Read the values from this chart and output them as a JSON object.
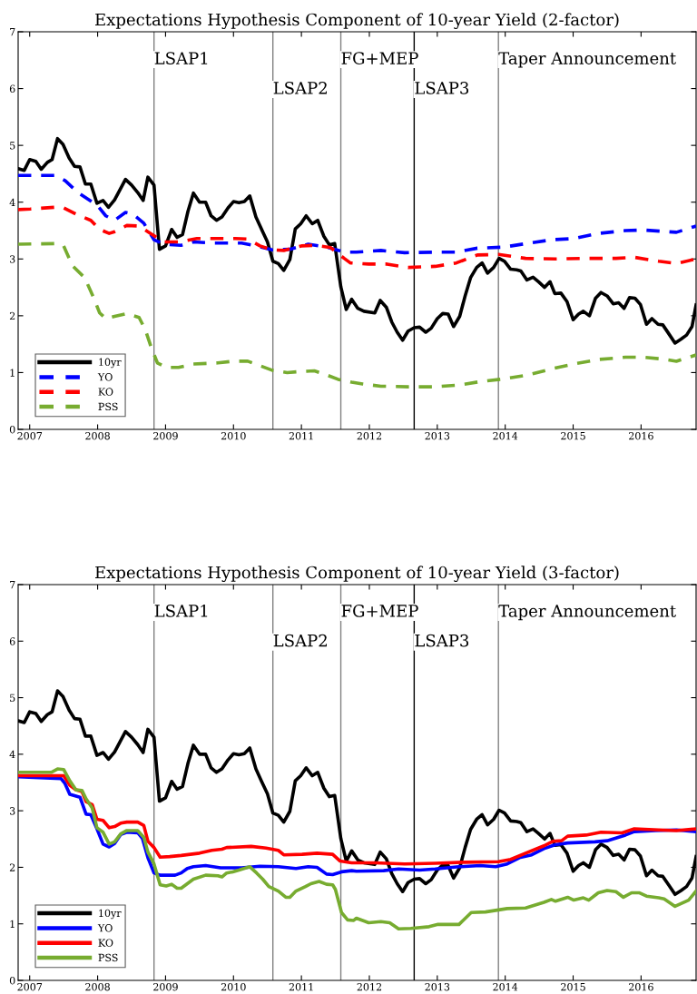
{
  "chart_data": [
    {
      "type": "line",
      "title": "Expectations Hypothesis Component of 10-year Yield (2-factor)",
      "xlim": [
        2006.83,
        2016.81
      ],
      "xticks": [
        2007,
        2008,
        2009,
        2010,
        2011,
        2012,
        2013,
        2014,
        2015,
        2016
      ],
      "ylim": [
        0,
        7
      ],
      "yticks": [
        0,
        1,
        2,
        3,
        4,
        5,
        6,
        7
      ],
      "grid": false,
      "legend": "bottom left",
      "ref_lines": [
        {
          "axis": "x",
          "value": 2008.83,
          "label": "LSAP1",
          "color": "#808080"
        },
        {
          "axis": "x",
          "value": 2010.58,
          "label": "LSAP2",
          "color": "#808080"
        },
        {
          "axis": "x",
          "value": 2011.58,
          "label": "FG+MEP",
          "color": "#808080"
        },
        {
          "axis": "x",
          "value": 2012.66,
          "label": "LSAP3",
          "color": "#000000"
        },
        {
          "axis": "x",
          "value": 2013.9,
          "label": "Taper Announcement",
          "color": "#808080"
        }
      ],
      "series": [
        {
          "name": "10yr",
          "color": "#000000",
          "line_style": "solid",
          "x": [
            2006.83,
            2006.92,
            2007.0,
            2007.09,
            2007.17,
            2007.26,
            2007.33,
            2007.41,
            2007.49,
            2007.58,
            2007.66,
            2007.74,
            2007.82,
            2007.9,
            2007.99,
            2008.08,
            2008.16,
            2008.25,
            2008.33,
            2008.41,
            2008.5,
            2008.59,
            2008.67,
            2008.74,
            2008.83,
            2008.91,
            2009.0,
            2009.09,
            2009.17,
            2009.25,
            2009.33,
            2009.41,
            2009.5,
            2009.59,
            2009.67,
            2009.75,
            2009.83,
            2009.92,
            2010.0,
            2010.08,
            2010.16,
            2010.24,
            2010.33,
            2010.41,
            2010.5,
            2010.58,
            2010.66,
            2010.74,
            2010.83,
            2010.91,
            2010.99,
            2011.07,
            2011.16,
            2011.24,
            2011.33,
            2011.41,
            2011.49,
            2011.58,
            2011.66,
            2011.74,
            2011.83,
            2011.92,
            2012.08,
            2012.16,
            2012.25,
            2012.33,
            2012.41,
            2012.49,
            2012.57,
            2012.66,
            2012.74,
            2012.83,
            2012.91,
            2013.0,
            2013.08,
            2013.16,
            2013.24,
            2013.33,
            2013.41,
            2013.49,
            2013.58,
            2013.66,
            2013.74,
            2013.83,
            2013.91,
            2013.99,
            2014.08,
            2014.17,
            2014.23,
            2014.32,
            2014.41,
            2014.49,
            2014.58,
            2014.66,
            2014.73,
            2014.82,
            2014.91,
            2015.0,
            2015.08,
            2015.15,
            2015.24,
            2015.33,
            2015.41,
            2015.5,
            2015.59,
            2015.67,
            2015.75,
            2015.83,
            2015.91,
            2015.99,
            2016.08,
            2016.16,
            2016.25,
            2016.32,
            2016.41,
            2016.5,
            2016.59,
            2016.67,
            2016.75,
            2016.81
          ],
          "values": [
            4.59,
            4.56,
            4.75,
            4.72,
            4.58,
            4.7,
            4.75,
            5.12,
            5.02,
            4.78,
            4.63,
            4.62,
            4.32,
            4.32,
            3.98,
            4.03,
            3.91,
            4.04,
            4.22,
            4.4,
            4.3,
            4.17,
            4.03,
            4.44,
            4.3,
            3.17,
            3.23,
            3.52,
            3.38,
            3.43,
            3.84,
            4.16,
            4.0,
            4.0,
            3.76,
            3.68,
            3.74,
            3.9,
            4.01,
            3.99,
            4.01,
            4.11,
            3.74,
            3.53,
            3.3,
            2.96,
            2.92,
            2.8,
            2.99,
            3.53,
            3.62,
            3.76,
            3.62,
            3.68,
            3.4,
            3.25,
            3.27,
            2.51,
            2.11,
            2.29,
            2.13,
            2.08,
            2.05,
            2.27,
            2.15,
            1.89,
            1.71,
            1.57,
            1.73,
            1.79,
            1.8,
            1.71,
            1.78,
            1.95,
            2.04,
            2.03,
            1.81,
            1.99,
            2.35,
            2.67,
            2.85,
            2.93,
            2.75,
            2.85,
            3.01,
            2.96,
            2.82,
            2.81,
            2.79,
            2.63,
            2.68,
            2.6,
            2.5,
            2.6,
            2.39,
            2.4,
            2.25,
            1.93,
            2.03,
            2.08,
            2.0,
            2.31,
            2.41,
            2.35,
            2.21,
            2.23,
            2.13,
            2.32,
            2.31,
            2.2,
            1.85,
            1.95,
            1.85,
            1.84,
            1.68,
            1.52,
            1.59,
            1.66,
            1.81,
            2.19
          ]
        },
        {
          "name": "YO",
          "color": "#0000ff",
          "line_style": "dashed",
          "x": [
            2006.83,
            2007.37,
            2007.52,
            2007.72,
            2007.99,
            2008.12,
            2008.25,
            2008.41,
            2008.52,
            2008.68,
            2008.83,
            2008.97,
            2009.23,
            2009.41,
            2009.68,
            2010.12,
            2010.34,
            2010.57,
            2010.83,
            2011.1,
            2011.37,
            2011.63,
            2011.81,
            2012.17,
            2012.52,
            2012.97,
            2013.28,
            2013.59,
            2013.99,
            2014.3,
            2014.7,
            2015.01,
            2015.37,
            2015.77,
            2016.03,
            2016.52,
            2016.81
          ],
          "values": [
            4.47,
            4.47,
            4.38,
            4.16,
            3.95,
            3.76,
            3.68,
            3.82,
            3.79,
            3.63,
            3.34,
            3.26,
            3.24,
            3.3,
            3.28,
            3.28,
            3.23,
            3.16,
            3.17,
            3.26,
            3.21,
            3.12,
            3.12,
            3.15,
            3.11,
            3.12,
            3.12,
            3.19,
            3.21,
            3.27,
            3.34,
            3.36,
            3.45,
            3.5,
            3.51,
            3.47,
            3.58
          ]
        },
        {
          "name": "KO",
          "color": "#ff0000",
          "line_style": "dashed",
          "x": [
            2006.83,
            2007.01,
            2007.37,
            2007.5,
            2007.68,
            2007.9,
            2008.03,
            2008.17,
            2008.25,
            2008.43,
            2008.61,
            2008.79,
            2008.97,
            2009.19,
            2009.46,
            2009.68,
            2010.03,
            2010.21,
            2010.39,
            2010.57,
            2010.74,
            2011.0,
            2011.21,
            2011.43,
            2011.63,
            2011.72,
            2011.99,
            2012.26,
            2012.57,
            2012.97,
            2013.28,
            2013.59,
            2013.9,
            2014.3,
            2014.74,
            2015.19,
            2015.63,
            2015.9,
            2016.26,
            2016.52,
            2016.81
          ],
          "values": [
            3.87,
            3.88,
            3.91,
            3.9,
            3.79,
            3.68,
            3.52,
            3.45,
            3.48,
            3.59,
            3.58,
            3.44,
            3.3,
            3.3,
            3.36,
            3.36,
            3.36,
            3.35,
            3.23,
            3.16,
            3.15,
            3.23,
            3.24,
            3.2,
            3.01,
            2.93,
            2.91,
            2.91,
            2.85,
            2.87,
            2.93,
            3.07,
            3.08,
            3.01,
            3.0,
            3.01,
            3.01,
            3.03,
            2.96,
            2.92,
            3.0
          ]
        },
        {
          "name": "PSS",
          "color": "#77ac30",
          "line_style": "dashed",
          "x": [
            2006.83,
            2007.37,
            2007.5,
            2007.63,
            2007.81,
            2007.94,
            2008.03,
            2008.12,
            2008.25,
            2008.43,
            2008.61,
            2008.7,
            2008.79,
            2008.88,
            2009.01,
            2009.19,
            2009.41,
            2009.77,
            2009.99,
            2010.21,
            2010.39,
            2010.57,
            2010.79,
            2011.01,
            2011.19,
            2011.37,
            2011.54,
            2011.74,
            2011.9,
            2012.17,
            2012.57,
            2012.97,
            2013.32,
            2013.63,
            2013.99,
            2014.34,
            2014.7,
            2015.01,
            2015.37,
            2015.77,
            2016.03,
            2016.3,
            2016.52,
            2016.81
          ],
          "values": [
            3.26,
            3.27,
            3.23,
            2.88,
            2.67,
            2.32,
            2.05,
            1.95,
            1.99,
            2.04,
            1.97,
            1.76,
            1.44,
            1.17,
            1.09,
            1.09,
            1.15,
            1.17,
            1.2,
            1.2,
            1.12,
            1.04,
            1.0,
            1.02,
            1.03,
            0.96,
            0.88,
            0.83,
            0.8,
            0.76,
            0.75,
            0.75,
            0.78,
            0.84,
            0.89,
            0.96,
            1.07,
            1.15,
            1.23,
            1.27,
            1.27,
            1.24,
            1.2,
            1.31
          ]
        }
      ]
    },
    {
      "type": "line",
      "title": "Expectations Hypothesis Component of 10-year Yield (3-factor)",
      "xlim": [
        2006.83,
        2016.81
      ],
      "xticks": [
        2007,
        2008,
        2009,
        2010,
        2011,
        2012,
        2013,
        2014,
        2015,
        2016
      ],
      "ylim": [
        0,
        7
      ],
      "yticks": [
        0,
        1,
        2,
        3,
        4,
        5,
        6,
        7
      ],
      "grid": false,
      "legend": "bottom left",
      "ref_lines": [
        {
          "axis": "x",
          "value": 2008.83,
          "label": "LSAP1",
          "color": "#808080"
        },
        {
          "axis": "x",
          "value": 2010.58,
          "label": "LSAP2",
          "color": "#808080"
        },
        {
          "axis": "x",
          "value": 2011.58,
          "label": "FG+MEP",
          "color": "#808080"
        },
        {
          "axis": "x",
          "value": 2012.66,
          "label": "LSAP3",
          "color": "#000000"
        },
        {
          "axis": "x",
          "value": 2013.9,
          "label": "Taper Announcement",
          "color": "#808080"
        }
      ],
      "series": [
        {
          "name": "10yr",
          "color": "#000000",
          "line_style": "solid",
          "x": [
            2006.83,
            2006.92,
            2007.0,
            2007.09,
            2007.17,
            2007.26,
            2007.33,
            2007.41,
            2007.49,
            2007.58,
            2007.66,
            2007.74,
            2007.82,
            2007.9,
            2007.99,
            2008.08,
            2008.16,
            2008.25,
            2008.33,
            2008.41,
            2008.5,
            2008.59,
            2008.67,
            2008.74,
            2008.83,
            2008.91,
            2009.0,
            2009.09,
            2009.17,
            2009.25,
            2009.33,
            2009.41,
            2009.5,
            2009.59,
            2009.67,
            2009.75,
            2009.83,
            2009.92,
            2010.0,
            2010.08,
            2010.16,
            2010.24,
            2010.33,
            2010.41,
            2010.5,
            2010.58,
            2010.66,
            2010.74,
            2010.83,
            2010.91,
            2010.99,
            2011.07,
            2011.16,
            2011.24,
            2011.33,
            2011.41,
            2011.49,
            2011.58,
            2011.66,
            2011.74,
            2011.83,
            2011.92,
            2012.08,
            2012.16,
            2012.25,
            2012.33,
            2012.41,
            2012.49,
            2012.57,
            2012.66,
            2012.74,
            2012.83,
            2012.91,
            2013.0,
            2013.08,
            2013.16,
            2013.24,
            2013.33,
            2013.41,
            2013.49,
            2013.58,
            2013.66,
            2013.74,
            2013.83,
            2013.91,
            2013.99,
            2014.08,
            2014.17,
            2014.23,
            2014.32,
            2014.41,
            2014.49,
            2014.58,
            2014.66,
            2014.73,
            2014.82,
            2014.91,
            2015.0,
            2015.08,
            2015.15,
            2015.24,
            2015.33,
            2015.41,
            2015.5,
            2015.59,
            2015.67,
            2015.75,
            2015.83,
            2015.91,
            2015.99,
            2016.08,
            2016.16,
            2016.25,
            2016.32,
            2016.41,
            2016.5,
            2016.59,
            2016.67,
            2016.75,
            2016.81
          ],
          "values": [
            4.59,
            4.56,
            4.75,
            4.72,
            4.58,
            4.7,
            4.75,
            5.12,
            5.02,
            4.78,
            4.63,
            4.62,
            4.32,
            4.32,
            3.98,
            4.03,
            3.91,
            4.04,
            4.22,
            4.4,
            4.3,
            4.17,
            4.03,
            4.44,
            4.3,
            3.17,
            3.23,
            3.52,
            3.38,
            3.43,
            3.84,
            4.16,
            4.0,
            4.0,
            3.76,
            3.68,
            3.74,
            3.9,
            4.01,
            3.99,
            4.01,
            4.11,
            3.74,
            3.53,
            3.3,
            2.96,
            2.92,
            2.8,
            2.99,
            3.53,
            3.62,
            3.76,
            3.62,
            3.68,
            3.4,
            3.25,
            3.27,
            2.51,
            2.11,
            2.29,
            2.13,
            2.08,
            2.05,
            2.27,
            2.15,
            1.89,
            1.71,
            1.57,
            1.73,
            1.79,
            1.8,
            1.71,
            1.78,
            1.95,
            2.04,
            2.03,
            1.81,
            1.99,
            2.35,
            2.67,
            2.85,
            2.93,
            2.75,
            2.85,
            3.01,
            2.96,
            2.82,
            2.81,
            2.79,
            2.63,
            2.68,
            2.6,
            2.5,
            2.6,
            2.39,
            2.4,
            2.25,
            1.93,
            2.03,
            2.08,
            2.0,
            2.31,
            2.41,
            2.35,
            2.21,
            2.23,
            2.13,
            2.32,
            2.31,
            2.2,
            1.85,
            1.95,
            1.85,
            1.84,
            1.68,
            1.52,
            1.59,
            1.66,
            1.81,
            2.19
          ]
        },
        {
          "name": "YO",
          "color": "#0000ff",
          "line_style": "solid",
          "x": [
            2006.83,
            2007.46,
            2007.52,
            2007.59,
            2007.74,
            2007.83,
            2007.9,
            2007.99,
            2008.08,
            2008.17,
            2008.25,
            2008.34,
            2008.43,
            2008.59,
            2008.66,
            2008.74,
            2008.83,
            2008.92,
            2009.14,
            2009.23,
            2009.32,
            2009.41,
            2009.59,
            2009.81,
            2010.12,
            2010.39,
            2010.66,
            2010.92,
            2011.1,
            2011.23,
            2011.37,
            2011.46,
            2011.59,
            2011.74,
            2011.81,
            2012.21,
            2012.43,
            2012.74,
            2012.97,
            2013.32,
            2013.63,
            2013.86,
            2014.03,
            2014.21,
            2014.39,
            2014.57,
            2014.74,
            2014.92,
            2015.32,
            2015.5,
            2015.77,
            2015.9,
            2016.21,
            2016.52,
            2016.81
          ],
          "values": [
            3.6,
            3.57,
            3.48,
            3.29,
            3.24,
            2.94,
            2.93,
            2.68,
            2.41,
            2.36,
            2.42,
            2.58,
            2.62,
            2.61,
            2.51,
            2.17,
            1.9,
            1.86,
            1.86,
            1.9,
            1.98,
            2.01,
            2.03,
            1.99,
            1.99,
            2.02,
            2.01,
            1.98,
            2.01,
            2.0,
            1.88,
            1.87,
            1.92,
            1.94,
            1.93,
            1.94,
            1.97,
            1.95,
            1.97,
            2.01,
            2.03,
            2.01,
            2.06,
            2.17,
            2.22,
            2.33,
            2.4,
            2.43,
            2.45,
            2.47,
            2.57,
            2.63,
            2.65,
            2.66,
            2.63
          ]
        },
        {
          "name": "KO",
          "color": "#ff0000",
          "line_style": "solid",
          "x": [
            2006.83,
            2007.5,
            2007.59,
            2007.68,
            2007.77,
            2007.83,
            2007.92,
            2007.99,
            2008.08,
            2008.17,
            2008.25,
            2008.34,
            2008.43,
            2008.59,
            2008.68,
            2008.74,
            2008.83,
            2008.92,
            2009.06,
            2009.23,
            2009.5,
            2009.68,
            2009.83,
            2009.9,
            2010.26,
            2010.48,
            2010.66,
            2010.74,
            2011.01,
            2011.23,
            2011.46,
            2011.57,
            2011.74,
            2012.08,
            2012.52,
            2012.97,
            2013.41,
            2013.9,
            2014.08,
            2014.3,
            2014.57,
            2014.7,
            2014.83,
            2014.92,
            2015.19,
            2015.41,
            2015.72,
            2015.9,
            2016.26,
            2016.52,
            2016.81
          ],
          "values": [
            3.62,
            3.62,
            3.45,
            3.37,
            3.34,
            3.16,
            3.11,
            2.85,
            2.83,
            2.7,
            2.72,
            2.78,
            2.8,
            2.8,
            2.74,
            2.46,
            2.35,
            2.18,
            2.19,
            2.21,
            2.25,
            2.3,
            2.32,
            2.35,
            2.37,
            2.34,
            2.3,
            2.22,
            2.23,
            2.25,
            2.23,
            2.11,
            2.08,
            2.08,
            2.06,
            2.07,
            2.09,
            2.1,
            2.14,
            2.25,
            2.38,
            2.46,
            2.47,
            2.55,
            2.57,
            2.62,
            2.61,
            2.68,
            2.66,
            2.65,
            2.68
          ]
        },
        {
          "name": "PSS",
          "color": "#77ac30",
          "line_style": "solid",
          "x": [
            2006.83,
            2007.32,
            2007.41,
            2007.5,
            2007.59,
            2007.68,
            2007.77,
            2007.83,
            2007.92,
            2007.99,
            2008.08,
            2008.17,
            2008.25,
            2008.34,
            2008.43,
            2008.59,
            2008.68,
            2008.74,
            2008.83,
            2008.92,
            2009.01,
            2009.09,
            2009.17,
            2009.23,
            2009.32,
            2009.41,
            2009.59,
            2009.77,
            2009.83,
            2009.9,
            2009.99,
            2010.08,
            2010.24,
            2010.34,
            2010.43,
            2010.52,
            2010.66,
            2010.77,
            2010.83,
            2010.92,
            2011.06,
            2011.14,
            2011.26,
            2011.37,
            2011.46,
            2011.5,
            2011.59,
            2011.68,
            2011.77,
            2011.81,
            2011.99,
            2012.17,
            2012.3,
            2012.43,
            2012.61,
            2012.88,
            2013.01,
            2013.32,
            2013.5,
            2013.71,
            2014.03,
            2014.3,
            2014.57,
            2014.68,
            2014.74,
            2014.92,
            2015.01,
            2015.15,
            2015.23,
            2015.37,
            2015.5,
            2015.63,
            2015.74,
            2015.86,
            2015.97,
            2016.08,
            2016.26,
            2016.34,
            2016.5,
            2016.7,
            2016.81
          ],
          "values": [
            3.68,
            3.68,
            3.74,
            3.73,
            3.53,
            3.37,
            3.36,
            3.21,
            3.05,
            2.7,
            2.62,
            2.41,
            2.45,
            2.59,
            2.65,
            2.65,
            2.53,
            2.27,
            2.06,
            1.69,
            1.67,
            1.7,
            1.63,
            1.63,
            1.71,
            1.79,
            1.86,
            1.85,
            1.83,
            1.9,
            1.92,
            1.95,
            2.01,
            1.9,
            1.79,
            1.66,
            1.58,
            1.47,
            1.47,
            1.58,
            1.66,
            1.71,
            1.75,
            1.7,
            1.69,
            1.61,
            1.2,
            1.07,
            1.06,
            1.1,
            1.02,
            1.04,
            1.02,
            0.91,
            0.92,
            0.95,
            0.99,
            0.99,
            1.2,
            1.21,
            1.27,
            1.28,
            1.38,
            1.43,
            1.4,
            1.47,
            1.42,
            1.46,
            1.42,
            1.55,
            1.59,
            1.57,
            1.47,
            1.55,
            1.55,
            1.49,
            1.46,
            1.44,
            1.31,
            1.42,
            1.58
          ]
        }
      ]
    }
  ]
}
